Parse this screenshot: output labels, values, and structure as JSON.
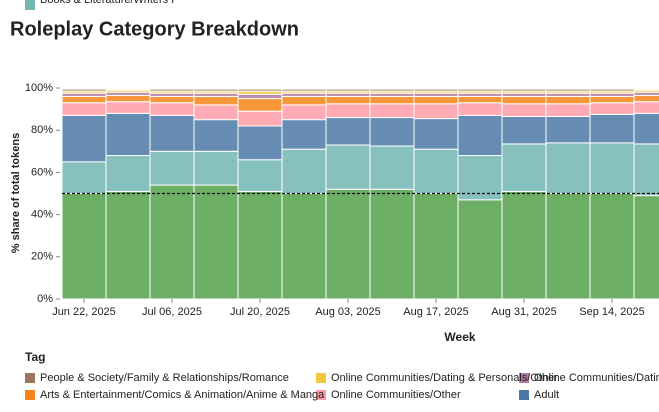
{
  "chart_data": {
    "type": "stacked_bar",
    "title": "Roleplay Category Breakdown",
    "x_label": "Week",
    "y_label": "% share of total tokens",
    "legend_title": "Tag",
    "categories": [
      "Jun 22, 2025",
      null,
      "Jul 06, 2025",
      null,
      "Jul 20, 2025",
      null,
      "Aug 03, 2025",
      null,
      "Aug 17, 2025",
      null,
      "Aug 31, 2025",
      null,
      "Sep 14, 2025",
      null
    ],
    "ylim": [
      0,
      100
    ],
    "yticks": [
      {
        "value": 0,
        "label": "0%"
      },
      {
        "value": 20,
        "label": "20%"
      },
      {
        "value": 40,
        "label": "40%"
      },
      {
        "value": 60,
        "label": "60%"
      },
      {
        "value": 80,
        "label": "80%"
      },
      {
        "value": 100,
        "label": "100%"
      }
    ],
    "hline": 50,
    "series": [
      {
        "color": "#54a24b",
        "values": [
          50,
          51,
          54,
          54,
          51,
          50,
          52,
          52,
          50,
          47,
          51,
          50,
          50,
          49
        ]
      },
      {
        "name": "Books & Literature/Writers F",
        "color": "#72b7b2",
        "values": [
          15,
          17,
          16,
          16,
          15,
          21,
          21,
          20.5,
          21,
          21,
          22.5,
          24,
          24,
          24.5
        ]
      },
      {
        "name": "Adult",
        "color": "#4c78a8",
        "values": [
          22,
          20,
          17,
          15,
          16,
          14,
          13,
          13.5,
          14.5,
          19,
          13,
          12.5,
          13.5,
          14.5
        ]
      },
      {
        "name": "Online Communities/Other",
        "color": "#ff9da6",
        "values": [
          6,
          5.5,
          6,
          7,
          7,
          7,
          6.5,
          6.5,
          7,
          6,
          6,
          6,
          5.5,
          5.5
        ]
      },
      {
        "name": "Arts & Entertainment/Comics & Animation/Anime & Manga",
        "color": "#f58518",
        "values": [
          3,
          3,
          3,
          4,
          6,
          4,
          3.5,
          3.5,
          3.5,
          3,
          3.5,
          3.5,
          3,
          3
        ]
      },
      {
        "name": "Online Communities/Dating",
        "color": "#b279a2",
        "values": [
          1.5,
          1.5,
          1.5,
          1.5,
          2,
          1.5,
          1.5,
          1.5,
          1.5,
          1.5,
          1.5,
          1.5,
          1.5,
          1.5
        ]
      },
      {
        "name": "Online Communities/Dating & Personals/Other",
        "color": "#eeca3b",
        "values": [
          1,
          1,
          1,
          1,
          1.5,
          1,
          1,
          1,
          1,
          1,
          1,
          1,
          1,
          1
        ]
      },
      {
        "name": "People & Society/Family & Relationships/Romance",
        "color": "#9d755d",
        "values": [
          1,
          0.5,
          1,
          1,
          1,
          1,
          1,
          1,
          1,
          1,
          1,
          1,
          1,
          0.5
        ]
      },
      {
        "color": "#f6dcc0",
        "values": [
          0.5,
          0.5,
          0.5,
          0.5,
          0.5,
          0.5,
          0.5,
          0.5,
          0.5,
          0.5,
          0.5,
          0.5,
          0.5,
          0.5
        ]
      }
    ]
  }
}
